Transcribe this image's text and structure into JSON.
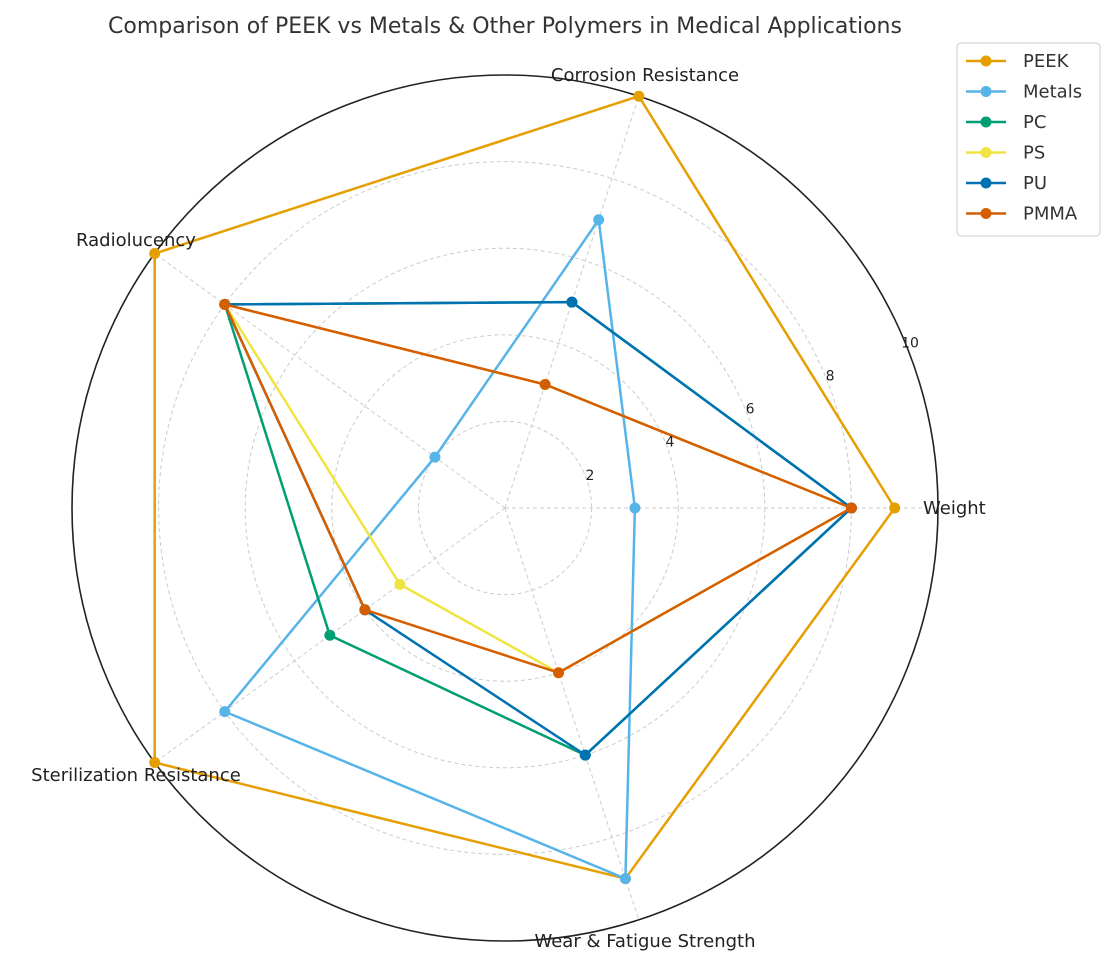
{
  "chart_data": {
    "type": "radar",
    "title": "Comparison of PEEK vs Metals & Other Polymers in Medical Applications",
    "categories": [
      "Weight",
      "Corrosion Resistance",
      "Radiolucency",
      "Sterilization Resistance",
      "Wear & Fatigue Strength"
    ],
    "rlim": [
      0,
      10
    ],
    "rticks": [
      "2",
      "4",
      "6",
      "8",
      "10"
    ],
    "grid": true,
    "legend_position": "top-right",
    "series": [
      {
        "name": "PEEK",
        "color": "#E69F00",
        "values": [
          9,
          10,
          10,
          10,
          9
        ]
      },
      {
        "name": "Metals",
        "color": "#56B4E9",
        "values": [
          3,
          7,
          2,
          8,
          9
        ]
      },
      {
        "name": "PC",
        "color": "#009E73",
        "values": [
          8,
          5,
          8,
          5,
          6
        ]
      },
      {
        "name": "PS",
        "color": "#F0E442",
        "values": [
          8,
          3,
          8,
          3,
          4
        ]
      },
      {
        "name": "PU",
        "color": "#0072B2",
        "values": [
          8,
          5,
          8,
          4,
          6
        ]
      },
      {
        "name": "PMMA",
        "color": "#D55E00",
        "values": [
          8,
          3,
          8,
          4,
          4
        ]
      }
    ]
  }
}
